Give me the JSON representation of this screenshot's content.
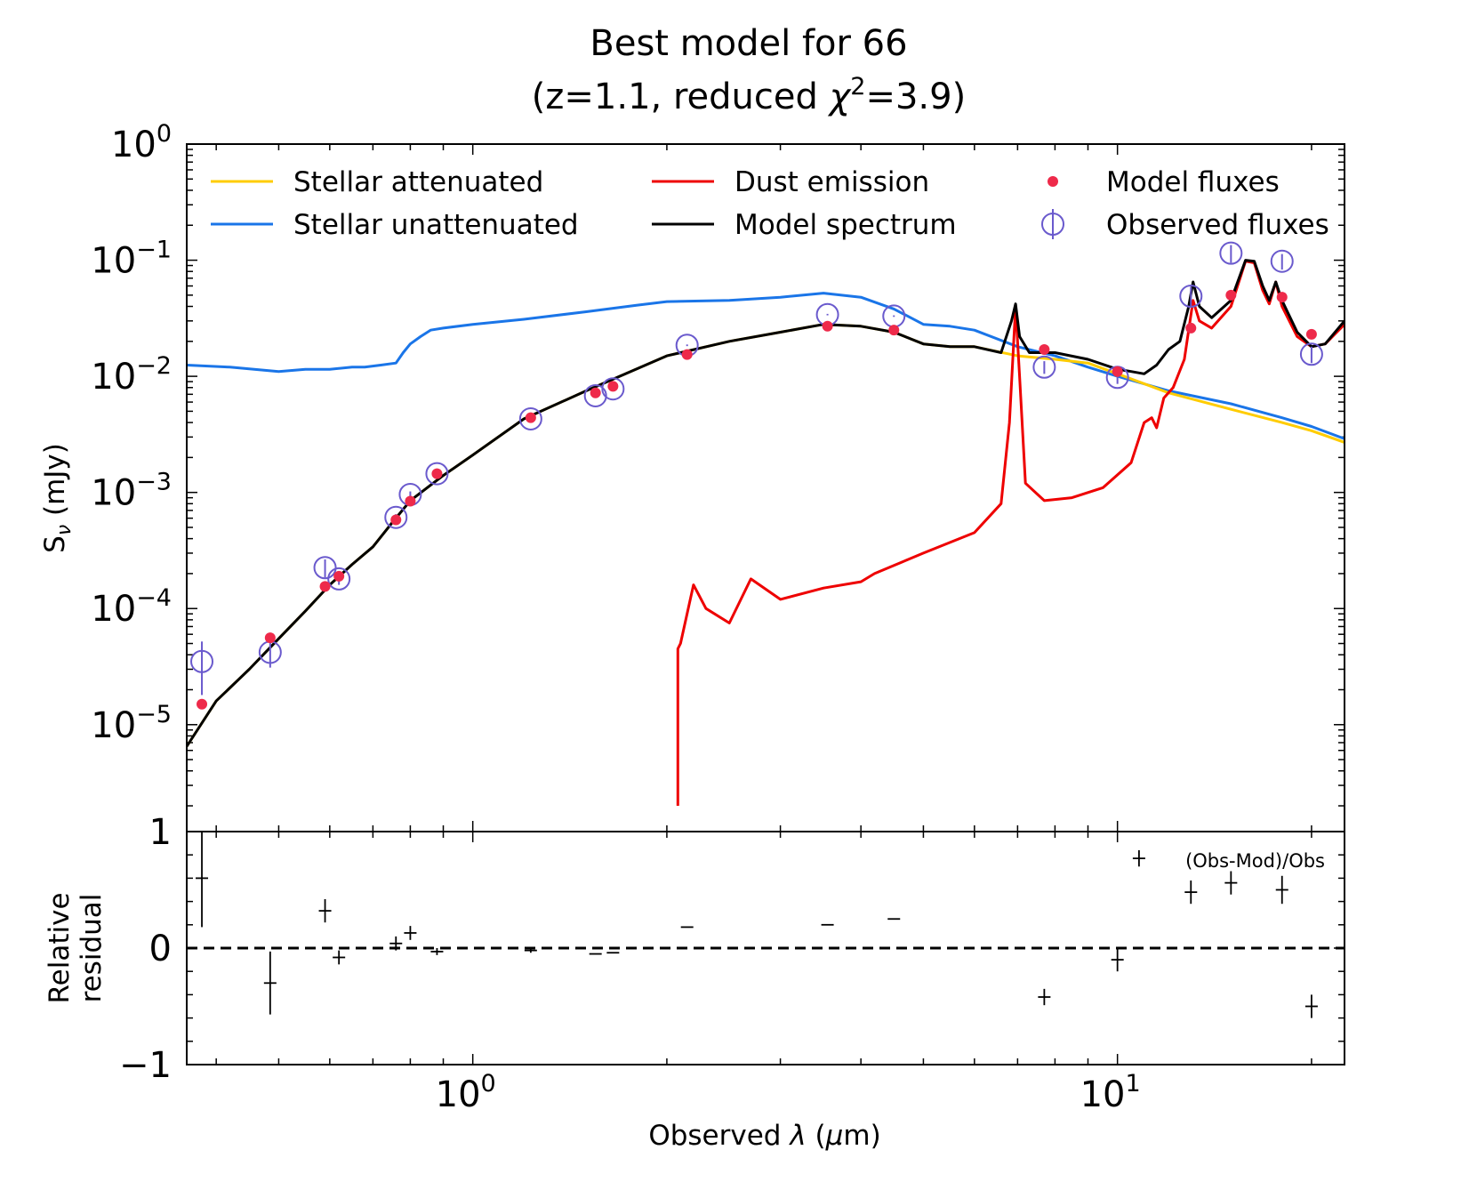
{
  "chart_data": [
    {
      "type": "line",
      "title": "Best model for 66",
      "subtitle": "(z=1.1, reduced χ²=3.9)",
      "subtitle_parts": {
        "prefix": "(z=1.1, reduced ",
        "chi": "χ",
        "sup": "2",
        "suffix": "=3.9)"
      },
      "xlabel": "Observed λ (μm)",
      "xlabel_parts": {
        "prefix": "Observed ",
        "lam": "λ",
        "paren_open": " (",
        "mu": "μ",
        "unit": "m)"
      },
      "ylabel": "Sν (mJy)",
      "ylabel_parts": {
        "s": "S",
        "sub": "ν",
        "unit": " (mJy)"
      },
      "xscale": "log",
      "yscale": "log",
      "xlim": [
        0.36,
        22.5
      ],
      "ylim": [
        1.2e-06,
        1.0
      ],
      "yticks": [
        {
          "base": "10",
          "exp": "0",
          "value": 1
        },
        {
          "base": "10",
          "exp": "−1",
          "value": 0.1
        },
        {
          "base": "10",
          "exp": "−2",
          "value": 0.01
        },
        {
          "base": "10",
          "exp": "−3",
          "value": 0.001
        },
        {
          "base": "10",
          "exp": "−4",
          "value": 0.0001
        },
        {
          "base": "10",
          "exp": "−5",
          "value": 1e-05
        }
      ],
      "legend": {
        "location": "top",
        "entries": [
          {
            "label": "Stellar attenuated",
            "color": "#ffcc00",
            "kind": "line"
          },
          {
            "label": "Stellar unattenuated",
            "color": "#1a75e8",
            "kind": "line"
          },
          {
            "label": "Dust emission",
            "color": "#ee0000",
            "kind": "line"
          },
          {
            "label": "Model spectrum",
            "color": "#000000",
            "kind": "line"
          },
          {
            "label": "Model fluxes",
            "color": "#ee2a4a",
            "kind": "point"
          },
          {
            "label": "Observed fluxes",
            "color": "#6a5acd",
            "kind": "errorcircle"
          }
        ]
      },
      "series": [
        {
          "name": "Stellar unattenuated",
          "color": "#1a75e8",
          "x": [
            0.36,
            0.42,
            0.5,
            0.55,
            0.6,
            0.65,
            0.68,
            0.72,
            0.76,
            0.78,
            0.8,
            0.83,
            0.86,
            0.9,
            1.0,
            1.2,
            1.5,
            1.8,
            2.0,
            2.5,
            3.0,
            3.5,
            4.0,
            4.5,
            5.0,
            5.5,
            6.0,
            7.0,
            8.0,
            9.0,
            10,
            12,
            15,
            18,
            20,
            22.5
          ],
          "y": [
            0.0125,
            0.012,
            0.011,
            0.0115,
            0.0115,
            0.012,
            0.012,
            0.0125,
            0.013,
            0.016,
            0.019,
            0.022,
            0.025,
            0.026,
            0.028,
            0.031,
            0.036,
            0.041,
            0.044,
            0.045,
            0.048,
            0.052,
            0.048,
            0.038,
            0.028,
            0.027,
            0.025,
            0.018,
            0.015,
            0.012,
            0.01,
            0.0075,
            0.0058,
            0.0044,
            0.0037,
            0.0029
          ]
        },
        {
          "name": "Stellar attenuated",
          "color": "#ffcc00",
          "x": [
            0.36,
            0.4,
            0.45,
            0.5,
            0.55,
            0.6,
            0.65,
            0.7,
            0.75,
            0.8,
            0.85,
            0.9,
            1.0,
            1.2,
            1.5,
            2.0,
            2.5,
            3.0,
            3.5,
            4.0,
            4.5,
            5.0,
            5.5,
            6.0,
            7.0,
            8.0,
            9.0,
            10,
            12,
            15,
            18,
            20,
            22.5
          ],
          "y": [
            6.5e-06,
            1.6e-05,
            3e-05,
            5.5e-05,
            9.5e-05,
            0.00016,
            0.00024,
            0.00034,
            0.00055,
            0.00085,
            0.0011,
            0.0014,
            0.0021,
            0.0043,
            0.0075,
            0.015,
            0.02,
            0.024,
            0.028,
            0.027,
            0.024,
            0.019,
            0.018,
            0.018,
            0.015,
            0.014,
            0.013,
            0.0105,
            0.0072,
            0.0052,
            0.004,
            0.0034,
            0.0027
          ]
        },
        {
          "name": "Dust emission",
          "color": "#ee0000",
          "x": [
            2.08,
            2.08,
            2.1,
            2.2,
            2.3,
            2.5,
            2.7,
            3.0,
            3.5,
            4.0,
            4.2,
            5.0,
            6.0,
            6.6,
            6.8,
            6.95,
            7.05,
            7.2,
            7.7,
            8.5,
            9.5,
            10.5,
            11.0,
            11.3,
            11.5,
            11.8,
            12.2,
            12.7,
            13.1,
            13.4,
            14.0,
            15.0,
            15.8,
            16.3,
            16.8,
            17.2,
            17.6,
            18.0,
            19.0,
            20.0,
            21.0,
            22.5
          ],
          "y": [
            2e-06,
            4.5e-05,
            5e-05,
            0.00016,
            0.0001,
            7.5e-05,
            0.00018,
            0.00012,
            0.00015,
            0.00017,
            0.0002,
            0.0003,
            0.00045,
            0.0008,
            0.004,
            0.04,
            0.01,
            0.0012,
            0.00085,
            0.0009,
            0.0011,
            0.0018,
            0.004,
            0.0044,
            0.0036,
            0.0065,
            0.008,
            0.014,
            0.045,
            0.03,
            0.026,
            0.04,
            0.098,
            0.095,
            0.055,
            0.042,
            0.065,
            0.04,
            0.022,
            0.018,
            0.019,
            0.028
          ]
        },
        {
          "name": "Model spectrum",
          "color": "#000000",
          "x": [
            0.36,
            0.4,
            0.45,
            0.5,
            0.55,
            0.6,
            0.65,
            0.7,
            0.75,
            0.8,
            0.85,
            0.9,
            1.0,
            1.2,
            1.5,
            2.0,
            2.5,
            3.0,
            3.5,
            4.0,
            4.5,
            5.0,
            5.5,
            6.0,
            6.6,
            6.85,
            6.95,
            7.05,
            7.3,
            8.0,
            9.0,
            10,
            10.5,
            11.0,
            11.5,
            12.0,
            12.5,
            12.9,
            13.1,
            13.4,
            14.0,
            15.0,
            15.8,
            16.3,
            16.8,
            17.2,
            17.6,
            18.0,
            19.0,
            20.0,
            21.0,
            22.5
          ],
          "y": [
            6.5e-06,
            1.6e-05,
            3e-05,
            5.5e-05,
            9.5e-05,
            0.00016,
            0.00024,
            0.00034,
            0.00055,
            0.00085,
            0.0011,
            0.0014,
            0.0021,
            0.0043,
            0.0075,
            0.015,
            0.02,
            0.024,
            0.028,
            0.027,
            0.024,
            0.019,
            0.018,
            0.018,
            0.016,
            0.03,
            0.042,
            0.022,
            0.016,
            0.016,
            0.014,
            0.0115,
            0.011,
            0.0105,
            0.0125,
            0.017,
            0.02,
            0.04,
            0.065,
            0.04,
            0.032,
            0.045,
            0.1,
            0.098,
            0.06,
            0.045,
            0.065,
            0.045,
            0.024,
            0.018,
            0.019,
            0.03
          ]
        }
      ],
      "model_fluxes": {
        "x": [
          0.38,
          0.485,
          0.59,
          0.62,
          0.76,
          0.8,
          0.88,
          1.23,
          1.55,
          1.65,
          2.15,
          3.55,
          4.5,
          7.7,
          10.0,
          13.0,
          15.0,
          18.0,
          20.0
        ],
        "y": [
          1.5e-05,
          5.6e-05,
          0.000155,
          0.00019,
          0.00058,
          0.00084,
          0.00145,
          0.0044,
          0.0072,
          0.0082,
          0.0154,
          0.027,
          0.025,
          0.017,
          0.011,
          0.026,
          0.05,
          0.048,
          0.023
        ]
      },
      "observed_fluxes": {
        "x": [
          0.38,
          0.485,
          0.59,
          0.62,
          0.76,
          0.8,
          0.88,
          1.23,
          1.55,
          1.65,
          2.15,
          3.55,
          4.5,
          7.7,
          10.0,
          13.0,
          15.0,
          18.0,
          20.0
        ],
        "y": [
          3.5e-05,
          4.2e-05,
          0.000225,
          0.00018,
          0.00061,
          0.00096,
          0.00145,
          0.0043,
          0.0068,
          0.0078,
          0.0185,
          0.034,
          0.033,
          0.012,
          0.0098,
          0.049,
          0.115,
          0.098,
          0.0155
        ],
        "yerr_lo": [
          1.7e-05,
          1.1e-05,
          4e-05,
          2e-05,
          4e-05,
          6e-05,
          5e-05,
          0.0001,
          0.0001,
          0.0001,
          0.0003,
          0.0005,
          0.0005,
          0.0015,
          0.0012,
          0.01,
          0.02,
          0.015,
          0.0025
        ],
        "yerr_hi": [
          1.7e-05,
          1.1e-05,
          4e-05,
          2e-05,
          4e-05,
          6e-05,
          5e-05,
          0.0001,
          0.0001,
          0.0001,
          0.0003,
          0.0005,
          0.0005,
          0.0015,
          0.0012,
          0.01,
          0.02,
          0.015,
          0.0025
        ]
      }
    },
    {
      "type": "scatter",
      "title": "Relative residual",
      "ylabel": "Relative residual",
      "ylabel_lines": [
        "Relative",
        "residual"
      ],
      "xlabel": "Observed λ (μm)",
      "annotation": "(Obs-Mod)/Obs",
      "xscale": "log",
      "xlim": [
        0.36,
        22.5
      ],
      "ylim": [
        -1,
        1
      ],
      "yticks": [
        {
          "label": "1",
          "value": 1
        },
        {
          "label": "0",
          "value": 0
        },
        {
          "label": "−1",
          "value": -1
        }
      ],
      "xticks": [
        {
          "base": "10",
          "exp": "0",
          "value": 1
        },
        {
          "base": "10",
          "exp": "1",
          "value": 10
        }
      ],
      "reference_line": {
        "y": 0,
        "style": "dashed"
      },
      "points": {
        "x": [
          0.38,
          0.485,
          0.59,
          0.62,
          0.76,
          0.8,
          0.88,
          1.23,
          1.55,
          1.65,
          2.15,
          3.55,
          4.5,
          7.7,
          10.0,
          10.8,
          13.0,
          15.0,
          18.0,
          20.0
        ],
        "y": [
          0.6,
          -0.3,
          0.32,
          -0.08,
          0.04,
          0.13,
          -0.03,
          -0.02,
          -0.05,
          -0.04,
          0.18,
          0.2,
          0.25,
          -0.42,
          -0.1,
          0.77,
          0.48,
          0.56,
          0.5,
          -0.5
        ],
        "yerr": [
          0.42,
          0.27,
          0.1,
          0.06,
          0.06,
          0.06,
          0.03,
          0.02,
          0.0,
          0.0,
          0.0,
          0.0,
          0.0,
          0.07,
          0.1,
          0.07,
          0.1,
          0.1,
          0.12,
          0.1
        ]
      }
    }
  ]
}
